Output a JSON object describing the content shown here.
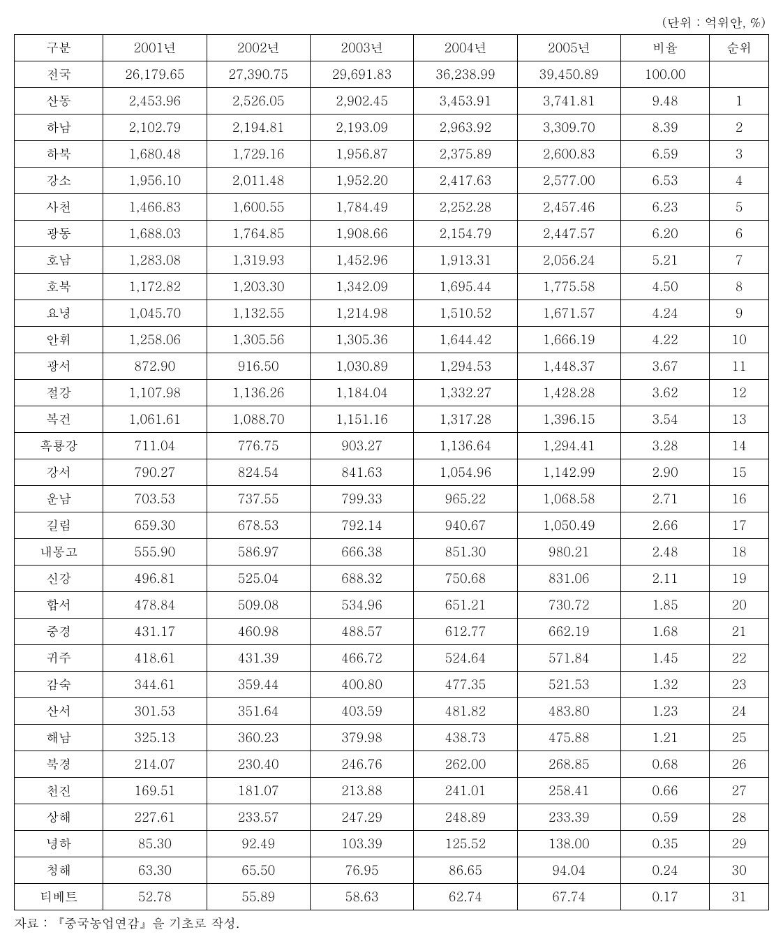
{
  "unit_label": "(단위 : 억위안, %)",
  "source_note": "자료 : 『중국농업연감』을 기초로 작성.",
  "table": {
    "type": "table",
    "background_color": "#ffffff",
    "border_color": "#000000",
    "text_color": "#000000",
    "font_size_pt": 13,
    "columns": [
      {
        "key": "region",
        "label": "구분",
        "align": "center"
      },
      {
        "key": "y2001",
        "label": "2001년",
        "align": "center"
      },
      {
        "key": "y2002",
        "label": "2002년",
        "align": "center"
      },
      {
        "key": "y2003",
        "label": "2003년",
        "align": "center"
      },
      {
        "key": "y2004",
        "label": "2004년",
        "align": "center"
      },
      {
        "key": "y2005",
        "label": "2005년",
        "align": "center"
      },
      {
        "key": "ratio",
        "label": "비율",
        "align": "center"
      },
      {
        "key": "rank",
        "label": "순위",
        "align": "center"
      }
    ],
    "rows": [
      {
        "region": "전국",
        "y2001": "26,179.65",
        "y2002": "27,390.75",
        "y2003": "29,691.83",
        "y2004": "36,238.99",
        "y2005": "39,450.89",
        "ratio": "100.00",
        "rank": ""
      },
      {
        "region": "산동",
        "y2001": "2,453.96",
        "y2002": "2,526.05",
        "y2003": "2,902.45",
        "y2004": "3,453.91",
        "y2005": "3,741.81",
        "ratio": "9.48",
        "rank": "1"
      },
      {
        "region": "하남",
        "y2001": "2,102.79",
        "y2002": "2,194.81",
        "y2003": "2,193.09",
        "y2004": "2,963.92",
        "y2005": "3,309.70",
        "ratio": "8.39",
        "rank": "2"
      },
      {
        "region": "하북",
        "y2001": "1,680.48",
        "y2002": "1,729.16",
        "y2003": "1,956.87",
        "y2004": "2,375.89",
        "y2005": "2,600.83",
        "ratio": "6.59",
        "rank": "3"
      },
      {
        "region": "강소",
        "y2001": "1,956.10",
        "y2002": "2,011.48",
        "y2003": "1,952.20",
        "y2004": "2,417.63",
        "y2005": "2,577.00",
        "ratio": "6.53",
        "rank": "4"
      },
      {
        "region": "사천",
        "y2001": "1,466.83",
        "y2002": "1,600.55",
        "y2003": "1,784.49",
        "y2004": "2,252.28",
        "y2005": "2,457.46",
        "ratio": "6.23",
        "rank": "5"
      },
      {
        "region": "광동",
        "y2001": "1,688.03",
        "y2002": "1,764.85",
        "y2003": "1,908.66",
        "y2004": "2,154.79",
        "y2005": "2,447.57",
        "ratio": "6.20",
        "rank": "6"
      },
      {
        "region": "호남",
        "y2001": "1,283.08",
        "y2002": "1,319.93",
        "y2003": "1,452.96",
        "y2004": "1,913.31",
        "y2005": "2,056.24",
        "ratio": "5.21",
        "rank": "7"
      },
      {
        "region": "호북",
        "y2001": "1,172.82",
        "y2002": "1,203.30",
        "y2003": "1,342.09",
        "y2004": "1,695.44",
        "y2005": "1,775.58",
        "ratio": "4.50",
        "rank": "8"
      },
      {
        "region": "요녕",
        "y2001": "1,045.70",
        "y2002": "1,132.55",
        "y2003": "1,214.98",
        "y2004": "1,510.52",
        "y2005": "1,671.57",
        "ratio": "4.24",
        "rank": "9"
      },
      {
        "region": "안휘",
        "y2001": "1,258.06",
        "y2002": "1,305.56",
        "y2003": "1,305.36",
        "y2004": "1,644.42",
        "y2005": "1,666.19",
        "ratio": "4.22",
        "rank": "10"
      },
      {
        "region": "광서",
        "y2001": "872.90",
        "y2002": "916.50",
        "y2003": "1,030.89",
        "y2004": "1,294.53",
        "y2005": "1,448.37",
        "ratio": "3.67",
        "rank": "11"
      },
      {
        "region": "절강",
        "y2001": "1,107.98",
        "y2002": "1,136.26",
        "y2003": "1,184.04",
        "y2004": "1,332.27",
        "y2005": "1,428.28",
        "ratio": "3.62",
        "rank": "12"
      },
      {
        "region": "복건",
        "y2001": "1,061.61",
        "y2002": "1,088.70",
        "y2003": "1,151.16",
        "y2004": "1,317.28",
        "y2005": "1,396.15",
        "ratio": "3.54",
        "rank": "13"
      },
      {
        "region": "흑룡강",
        "y2001": "711.04",
        "y2002": "776.75",
        "y2003": "903.27",
        "y2004": "1,136.64",
        "y2005": "1,294.41",
        "ratio": "3.28",
        "rank": "14"
      },
      {
        "region": "강서",
        "y2001": "790.27",
        "y2002": "824.54",
        "y2003": "841.63",
        "y2004": "1,054.96",
        "y2005": "1,142.99",
        "ratio": "2.90",
        "rank": "15"
      },
      {
        "region": "운남",
        "y2001": "703.53",
        "y2002": "737.55",
        "y2003": "799.33",
        "y2004": "965.22",
        "y2005": "1,068.58",
        "ratio": "2.71",
        "rank": "16"
      },
      {
        "region": "길림",
        "y2001": "659.30",
        "y2002": "678.53",
        "y2003": "792.14",
        "y2004": "940.67",
        "y2005": "1,050.49",
        "ratio": "2.66",
        "rank": "17"
      },
      {
        "region": "내몽고",
        "y2001": "555.90",
        "y2002": "586.97",
        "y2003": "666.38",
        "y2004": "851.30",
        "y2005": "980.21",
        "ratio": "2.48",
        "rank": "18"
      },
      {
        "region": "신강",
        "y2001": "496.81",
        "y2002": "525.04",
        "y2003": "688.32",
        "y2004": "750.68",
        "y2005": "831.06",
        "ratio": "2.11",
        "rank": "19"
      },
      {
        "region": "합서",
        "y2001": "478.84",
        "y2002": "509.08",
        "y2003": "534.96",
        "y2004": "651.21",
        "y2005": "730.72",
        "ratio": "1.85",
        "rank": "20"
      },
      {
        "region": "중경",
        "y2001": "431.17",
        "y2002": "460.98",
        "y2003": "488.57",
        "y2004": "612.77",
        "y2005": "662.19",
        "ratio": "1.68",
        "rank": "21"
      },
      {
        "region": "귀주",
        "y2001": "418.61",
        "y2002": "431.39",
        "y2003": "466.72",
        "y2004": "524.64",
        "y2005": "571.84",
        "ratio": "1.45",
        "rank": "22"
      },
      {
        "region": "감숙",
        "y2001": "344.61",
        "y2002": "359.44",
        "y2003": "400.80",
        "y2004": "477.35",
        "y2005": "521.53",
        "ratio": "1.32",
        "rank": "23"
      },
      {
        "region": "산서",
        "y2001": "301.53",
        "y2002": "351.64",
        "y2003": "403.59",
        "y2004": "481.82",
        "y2005": "483.80",
        "ratio": "1.23",
        "rank": "24"
      },
      {
        "region": "해남",
        "y2001": "325.13",
        "y2002": "360.23",
        "y2003": "379.98",
        "y2004": "438.73",
        "y2005": "475.88",
        "ratio": "1.21",
        "rank": "25"
      },
      {
        "region": "북경",
        "y2001": "214.07",
        "y2002": "230.40",
        "y2003": "246.76",
        "y2004": "262.00",
        "y2005": "268.85",
        "ratio": "0.68",
        "rank": "26"
      },
      {
        "region": "천진",
        "y2001": "169.51",
        "y2002": "181.07",
        "y2003": "213.88",
        "y2004": "241.01",
        "y2005": "258.41",
        "ratio": "0.66",
        "rank": "27"
      },
      {
        "region": "상해",
        "y2001": "227.61",
        "y2002": "233.57",
        "y2003": "247.29",
        "y2004": "248.89",
        "y2005": "233.39",
        "ratio": "0.59",
        "rank": "28"
      },
      {
        "region": "녕하",
        "y2001": "85.30",
        "y2002": "92.49",
        "y2003": "103.39",
        "y2004": "125.52",
        "y2005": "138.00",
        "ratio": "0.35",
        "rank": "29"
      },
      {
        "region": "청해",
        "y2001": "63.30",
        "y2002": "65.50",
        "y2003": "76.95",
        "y2004": "86.65",
        "y2005": "94.04",
        "ratio": "0.24",
        "rank": "30"
      },
      {
        "region": "티베트",
        "y2001": "52.78",
        "y2002": "55.89",
        "y2003": "58.63",
        "y2004": "62.74",
        "y2005": "67.74",
        "ratio": "0.17",
        "rank": "31"
      }
    ]
  }
}
